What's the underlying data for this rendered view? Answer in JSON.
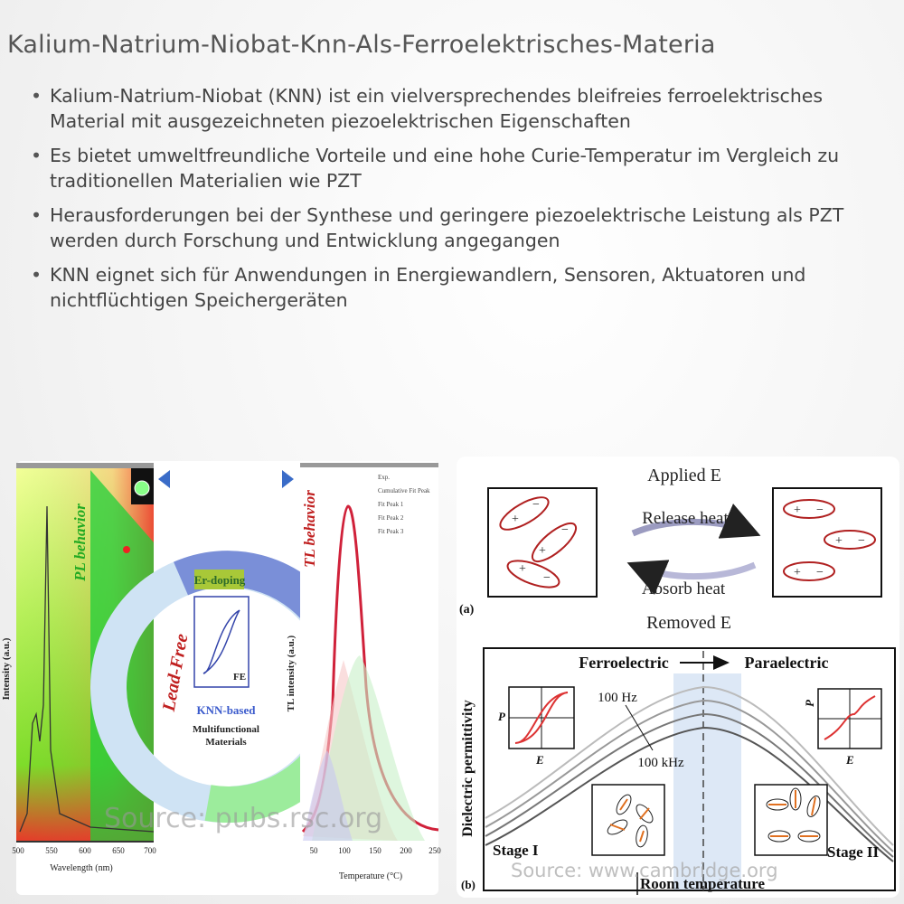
{
  "header": {
    "title": "Kalium-Natrium-Niobat-Knn-Als-Ferroelektrisches-Materia"
  },
  "bullets": [
    "Kalium-Natrium-Niobat (KNN) ist ein vielversprechendes bleifreies ferroelektrisches Material mit ausgezeichneten piezoelektrischen Eigenschaften",
    "Es bietet umweltfreundliche Vorteile und eine hohe Curie-Temperatur im Vergleich zu traditionellen Materialien wie PZT",
    "Herausforderungen bei der Synthese und geringere piezoelektrische Leistung als PZT werden durch Forschung und Entwicklung angegangen",
    "KNN eignet sich für Anwendungen in Energiewandlern, Sensoren, Aktuatoren und nichtflüchtigen Speichergeräten"
  ],
  "left_image": {
    "source": "Source: pubs.rsc.org",
    "pl_label": "PL behavior",
    "pl_ylabel": "Intensity (a.u.)",
    "pl_xlabel": "Wavelength (nm)",
    "pl_ticks": [
      "500",
      "550",
      "600",
      "650",
      "700"
    ],
    "ring": [
      "Er-doping",
      "Lead-Free",
      "FE",
      "KNN-based",
      "Multifunctional Materials"
    ],
    "tl_label": "TL behavior",
    "tl_ylabel": "TL intensity (a.u.)",
    "tl_xlabel": "Temperature (°C)",
    "tl_ticks": [
      "50",
      "100",
      "150",
      "200",
      "250"
    ],
    "tl_legend": [
      "Exp.",
      "Cumulative Fit Peak",
      "Fit Peak 1",
      "Fit Peak 2",
      "Fit Peak 3"
    ]
  },
  "right_image": {
    "source": "Source: www.cambridge.org",
    "applied": "Applied E",
    "release": "Release heat",
    "absorb": "Absorb heat",
    "removed": "Removed E",
    "panel_a": "(a)",
    "ferro": "Ferroelectric",
    "para": "Paraelectric",
    "hz100": "100 Hz",
    "khz100": "100 kHz",
    "ylabel": "Dielectric permittivity",
    "inset_left": [
      "P",
      "E"
    ],
    "inset_right": [
      "P",
      "E"
    ],
    "stage1": "Stage I",
    "stage2": "Stage II",
    "room": "Room temperature",
    "panel_b": "(b)"
  }
}
